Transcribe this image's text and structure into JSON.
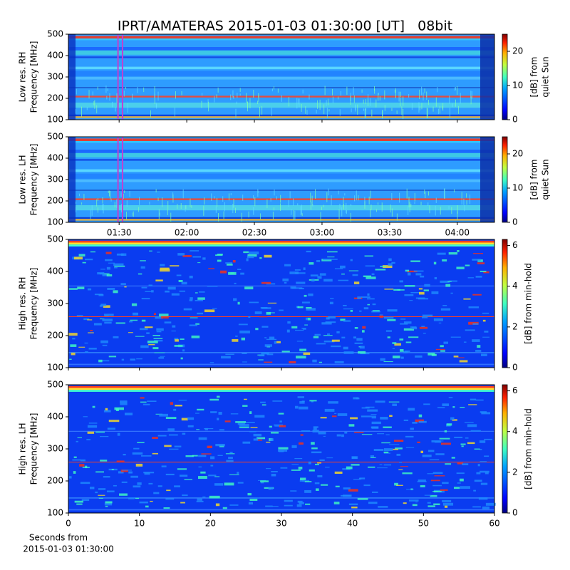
{
  "title": "IPRT/AMATERAS 2015-01-03 01:30:00 [UT]   08bit",
  "chart_data": [
    {
      "type": "spectrogram",
      "ylabel": [
        "Low res. RH",
        "Frequency [MHz]"
      ],
      "xlim": [
        67.5,
        256.5
      ],
      "xticks": [
        90,
        120,
        150,
        180,
        210,
        240
      ],
      "xticklabels": false,
      "ylim": [
        100,
        500
      ],
      "yticks": [
        100,
        200,
        300,
        400,
        500
      ],
      "clim": [
        0,
        25
      ],
      "cticks": [
        0,
        10,
        20
      ],
      "clabel": [
        "[dB] from",
        "quiet Sun"
      ],
      "resolution": "low",
      "marker": {
        "x": [
          89.5,
          91.5
        ],
        "color": "#c040d0"
      }
    },
    {
      "type": "spectrogram",
      "ylabel": [
        "Low res. LH",
        "Frequency [MHz]"
      ],
      "xlim": [
        67.5,
        256.5
      ],
      "xticks": [
        {
          "value": 90,
          "label": "01:30"
        },
        {
          "value": 120,
          "label": "02:00"
        },
        {
          "value": 150,
          "label": "02:30"
        },
        {
          "value": 180,
          "label": "03:00"
        },
        {
          "value": 210,
          "label": "03:30"
        },
        {
          "value": 240,
          "label": "04:00"
        }
      ],
      "xticklabels": true,
      "ylim": [
        100,
        500
      ],
      "yticks": [
        100,
        200,
        300,
        400,
        500
      ],
      "clim": [
        0,
        25
      ],
      "cticks": [
        0,
        10,
        20
      ],
      "clabel": [
        "[dB] from",
        "quiet Sun"
      ],
      "resolution": "low",
      "marker": {
        "x": [
          89.5,
          91.5
        ],
        "color": "#c040d0"
      }
    },
    {
      "type": "spectrogram",
      "ylabel": [
        "High res. RH",
        "Frequency [MHz]"
      ],
      "xlim": [
        0,
        60
      ],
      "xticks": [
        0,
        10,
        20,
        30,
        40,
        50,
        60
      ],
      "xticklabels": false,
      "ylim": [
        100,
        500
      ],
      "yticks": [
        100,
        200,
        300,
        400,
        500
      ],
      "clim": [
        0,
        6.3
      ],
      "cticks": [
        0,
        2,
        4,
        6
      ],
      "clabel": [
        "[dB] from min-hold"
      ],
      "resolution": "high"
    },
    {
      "type": "spectrogram",
      "ylabel": [
        "High res. LH",
        "Frequency [MHz]"
      ],
      "xlim": [
        0,
        60
      ],
      "xticks": [
        0,
        10,
        20,
        30,
        40,
        50,
        60
      ],
      "xticklabels": true,
      "xlabel": [
        "Seconds from",
        "2015-01-03 01:30:00"
      ],
      "ylim": [
        100,
        500
      ],
      "yticks": [
        100,
        200,
        300,
        400,
        500
      ],
      "clim": [
        0,
        6.3
      ],
      "cticks": [
        0,
        2,
        4,
        6
      ],
      "clabel": [
        "[dB] from min-hold"
      ],
      "resolution": "high"
    }
  ]
}
